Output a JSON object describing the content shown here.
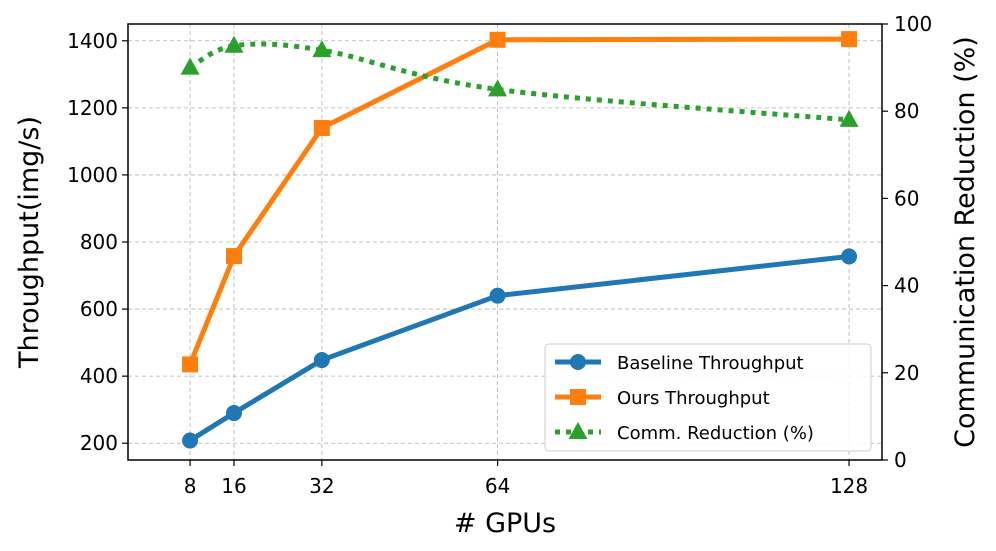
{
  "chart_data": {
    "type": "line",
    "x": [
      8,
      16,
      32,
      64,
      128
    ],
    "xlabel": "# GPUs",
    "ylabel": "Throughput(img/s)",
    "y2label": "Communication Reduction (%)",
    "x_ticks": [
      "8",
      "16",
      "32",
      "64",
      "128"
    ],
    "y_ticks": [
      "200",
      "400",
      "600",
      "800",
      "1000",
      "1200",
      "1400"
    ],
    "y2_ticks": [
      "0",
      "20",
      "40",
      "60",
      "80",
      "100"
    ],
    "ylim": [
      150,
      1450
    ],
    "y2lim": [
      0,
      100
    ],
    "grid": true,
    "legend_position": "lower-right",
    "series": [
      {
        "name": "Baseline Throughput",
        "axis": "left",
        "values": [
          208,
          290,
          448,
          640,
          757
        ],
        "color": "#1f77b4",
        "marker": "circle",
        "linestyle": "solid"
      },
      {
        "name": "Ours Throughput",
        "axis": "left",
        "values": [
          435,
          758,
          1140,
          1403,
          1405
        ],
        "color": "#ff7f0e",
        "marker": "square",
        "linestyle": "solid"
      },
      {
        "name": "Comm. Reduction (%)",
        "axis": "right",
        "values": [
          90,
          95,
          94,
          85,
          78
        ],
        "color": "#2ca02c",
        "marker": "triangle",
        "linestyle": "dotted"
      }
    ]
  }
}
